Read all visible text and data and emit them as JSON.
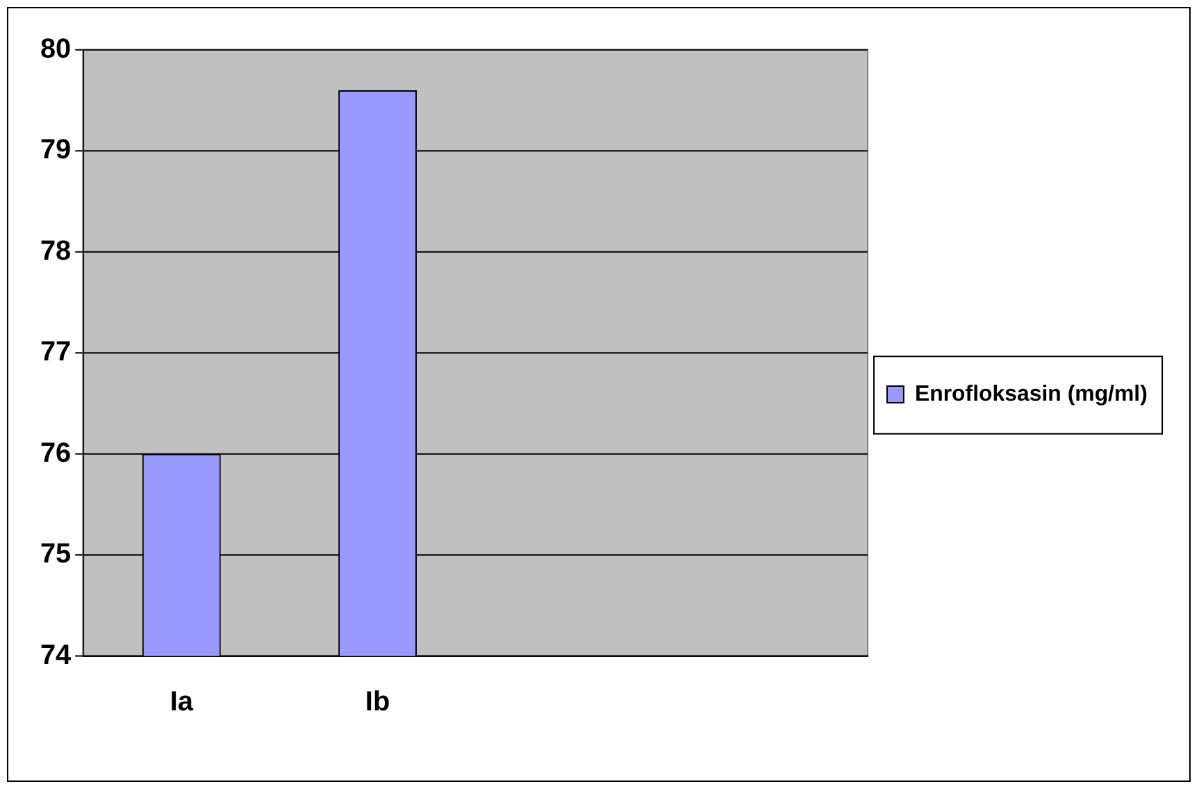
{
  "chart_data": {
    "type": "bar",
    "categories": [
      "Ia",
      "Ib",
      null,
      null
    ],
    "series": [
      {
        "name": "Enrofloksasin (mg/ml)",
        "color": "#9999ff",
        "values": [
          76,
          79.6,
          null,
          null
        ]
      }
    ],
    "ylim": [
      74,
      80
    ],
    "yticks": [
      74,
      75,
      76,
      77,
      78,
      79,
      80
    ],
    "grid": "y",
    "legend": "right"
  }
}
